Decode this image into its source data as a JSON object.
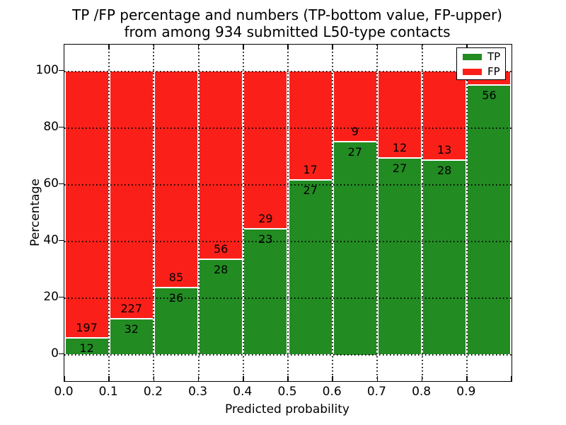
{
  "title": {
    "line1": "TP /FP percentage and numbers (TP-bottom value, FP-upper)",
    "line2": "from among 934 submitted L50-type contacts"
  },
  "axes": {
    "ylabel": "Percentage",
    "xlabel": "Predicted probability",
    "ytick_labels": [
      "0",
      "20",
      "40",
      "60",
      "80",
      "100"
    ],
    "ytick_values": [
      0,
      20,
      40,
      60,
      80,
      100
    ],
    "xtick_labels": [
      "0.0",
      "0.1",
      "0.2",
      "0.3",
      "0.4",
      "0.5",
      "0.6",
      "0.7",
      "0.8",
      "0.9"
    ],
    "grid": "dotted"
  },
  "legend": {
    "position": "upper right",
    "items": [
      {
        "label": "TP",
        "color": "#228B22"
      },
      {
        "label": "FP",
        "color": "#FA2019"
      }
    ]
  },
  "colors": {
    "tp": "#228B22",
    "fp": "#FA2019",
    "background": "#FFFFFF",
    "axis": "#000000"
  },
  "chart_data": {
    "type": "bar",
    "mode": "stacked-percentage",
    "title": "TP /FP percentage and numbers (TP-bottom value, FP-upper) from among 934 submitted L50-type contacts",
    "xlabel": "Predicted probability",
    "ylabel": "Percentage",
    "ylim": [
      -10,
      110
    ],
    "xlim": [
      0.0,
      1.0
    ],
    "bin_width": 0.1,
    "total_submitted": 934,
    "series_names": [
      "TP",
      "FP"
    ],
    "bins": [
      {
        "x_start": 0.0,
        "x_end": 0.1,
        "tp": 12,
        "fp": 197
      },
      {
        "x_start": 0.1,
        "x_end": 0.2,
        "tp": 32,
        "fp": 227
      },
      {
        "x_start": 0.2,
        "x_end": 0.3,
        "tp": 26,
        "fp": 85
      },
      {
        "x_start": 0.3,
        "x_end": 0.4,
        "tp": 28,
        "fp": 56
      },
      {
        "x_start": 0.4,
        "x_end": 0.5,
        "tp": 23,
        "fp": 29
      },
      {
        "x_start": 0.5,
        "x_end": 0.6,
        "tp": 27,
        "fp": 17
      },
      {
        "x_start": 0.6,
        "x_end": 0.7,
        "tp": 27,
        "fp": 9
      },
      {
        "x_start": 0.7,
        "x_end": 0.8,
        "tp": 27,
        "fp": 12
      },
      {
        "x_start": 0.8,
        "x_end": 0.9,
        "tp": 28,
        "fp": 13
      },
      {
        "x_start": 0.9,
        "x_end": 1.0,
        "tp": 56,
        "fp": null,
        "tp_pct": 94.9,
        "fp_label_visible": false
      }
    ]
  }
}
